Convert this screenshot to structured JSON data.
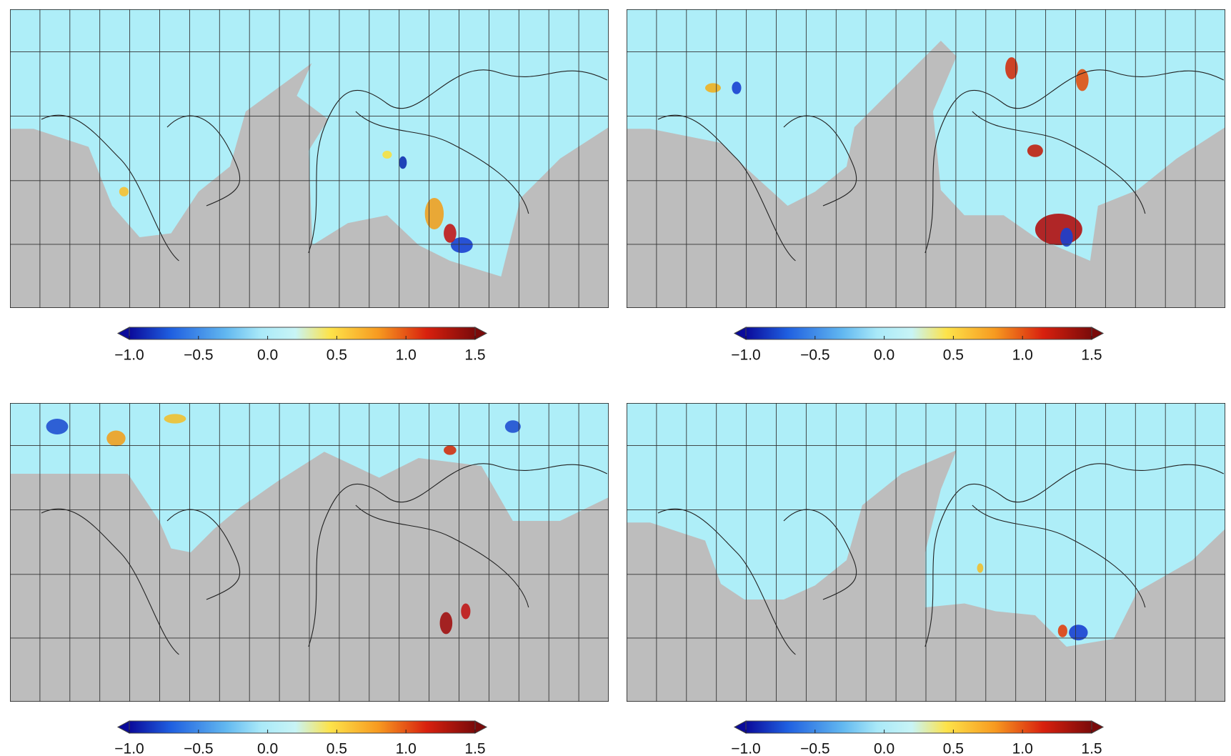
{
  "panels": [
    {
      "colorbar": {
        "lim": [
          -1,
          1.5
        ],
        "ticks": [
          {
            "value": -1,
            "label": "−1.0"
          },
          {
            "value": -0.5,
            "label": "−0.5"
          },
          {
            "value": 0,
            "label": "0.0"
          },
          {
            "value": 0.5,
            "label": "0.5"
          },
          {
            "value": 1,
            "label": "1.0"
          },
          {
            "value": 1.5,
            "label": "1.5"
          }
        ]
      }
    },
    {
      "colorbar": {
        "lim": [
          -1,
          1.5
        ],
        "ticks": [
          {
            "value": -1,
            "label": "−1.0"
          },
          {
            "value": -0.5,
            "label": "−0.5"
          },
          {
            "value": 0,
            "label": "0.0"
          },
          {
            "value": 0.5,
            "label": "0.5"
          },
          {
            "value": 1,
            "label": "1.0"
          },
          {
            "value": 1.5,
            "label": "1.5"
          }
        ]
      }
    },
    {
      "colorbar": {
        "lim": [
          -1,
          1.5
        ],
        "ticks": [
          {
            "value": -1,
            "label": "−1.0"
          },
          {
            "value": -0.5,
            "label": "−0.5"
          },
          {
            "value": 0,
            "label": "0.0"
          },
          {
            "value": 0.5,
            "label": "0.5"
          },
          {
            "value": 1,
            "label": "1.0"
          },
          {
            "value": 1.5,
            "label": "1.5"
          }
        ]
      }
    },
    {
      "colorbar": {
        "lim": [
          -1,
          1.5
        ],
        "ticks": [
          {
            "value": -1,
            "label": "−1.0"
          },
          {
            "value": -0.5,
            "label": "−0.5"
          },
          {
            "value": 0,
            "label": "0.0"
          },
          {
            "value": 0.5,
            "label": "0.5"
          },
          {
            "value": 1,
            "label": "1.0"
          },
          {
            "value": 1.5,
            "label": "1.5"
          }
        ]
      }
    }
  ]
}
